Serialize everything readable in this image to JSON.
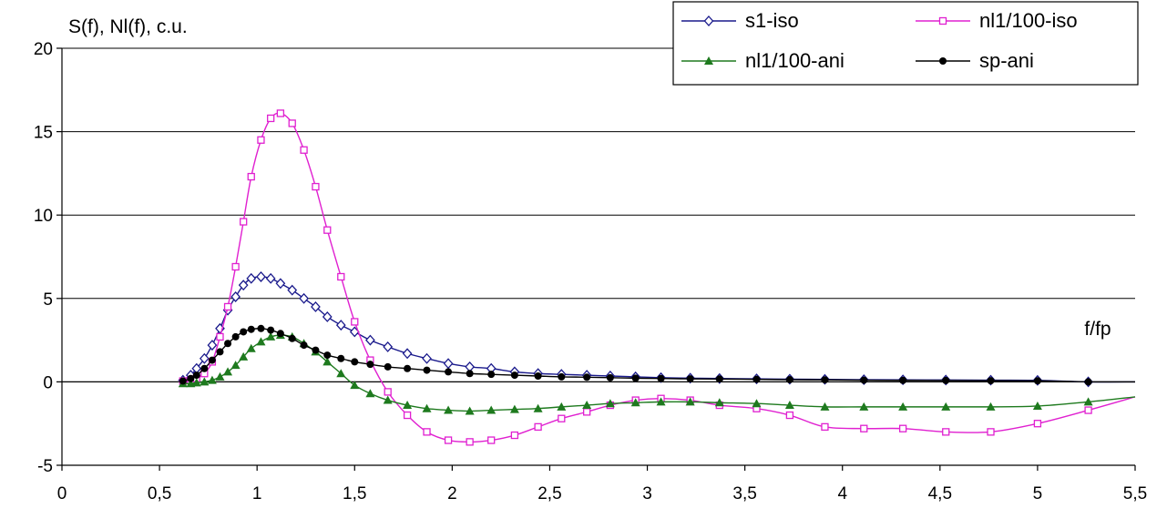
{
  "chart_data": {
    "type": "line",
    "ylabel": "S(f), Nl(f), c.u.",
    "xlabel": "f/fp",
    "xlim": [
      0,
      5.5
    ],
    "ylim": [
      -5,
      20
    ],
    "x_ticks": [
      "0",
      "0,5",
      "1",
      "1,5",
      "2",
      "2,5",
      "3",
      "3,5",
      "4",
      "4,5",
      "5",
      "5,5"
    ],
    "y_ticks": [
      "-5",
      "0",
      "5",
      "10",
      "15",
      "20"
    ],
    "grid": "horizontal",
    "legend_position": "top-right",
    "series": [
      {
        "name": "s1-iso",
        "color": "#1a1a8c",
        "marker": "open-diamond",
        "x": [
          0.62,
          0.66,
          0.69,
          0.73,
          0.77,
          0.81,
          0.85,
          0.89,
          0.93,
          0.97,
          1.02,
          1.07,
          1.12,
          1.18,
          1.24,
          1.3,
          1.36,
          1.43,
          1.5,
          1.58,
          1.67,
          1.77,
          1.87,
          1.98,
          2.09,
          2.2,
          2.32,
          2.44,
          2.56,
          2.69,
          2.81,
          2.94,
          3.07,
          3.22,
          3.37,
          3.56,
          3.73,
          3.91,
          4.11,
          4.31,
          4.53,
          4.76,
          5.0,
          5.26
        ],
        "y": [
          0.1,
          0.4,
          0.8,
          1.4,
          2.2,
          3.2,
          4.3,
          5.1,
          5.8,
          6.2,
          6.3,
          6.2,
          5.9,
          5.5,
          5.0,
          4.5,
          3.9,
          3.4,
          3.0,
          2.5,
          2.1,
          1.7,
          1.4,
          1.1,
          0.9,
          0.8,
          0.6,
          0.5,
          0.45,
          0.4,
          0.35,
          0.3,
          0.25,
          0.22,
          0.2,
          0.18,
          0.16,
          0.15,
          0.13,
          0.12,
          0.11,
          0.1,
          0.09,
          0.0
        ]
      },
      {
        "name": "nl1/100-iso",
        "color": "#e020d0",
        "marker": "open-square",
        "x": [
          0.62,
          0.66,
          0.69,
          0.73,
          0.77,
          0.81,
          0.85,
          0.89,
          0.93,
          0.97,
          1.02,
          1.07,
          1.12,
          1.18,
          1.24,
          1.3,
          1.36,
          1.43,
          1.5,
          1.58,
          1.67,
          1.77,
          1.87,
          1.98,
          2.09,
          2.2,
          2.32,
          2.44,
          2.56,
          2.69,
          2.81,
          2.94,
          3.07,
          3.22,
          3.37,
          3.56,
          3.73,
          3.91,
          4.11,
          4.31,
          4.53,
          4.76,
          5.0,
          5.26
        ],
        "y": [
          0.05,
          0.1,
          0.2,
          0.5,
          1.2,
          2.7,
          4.5,
          6.9,
          9.6,
          12.3,
          14.5,
          15.8,
          16.1,
          15.5,
          13.9,
          11.7,
          9.1,
          6.3,
          3.6,
          1.3,
          -0.6,
          -2.0,
          -3.0,
          -3.5,
          -3.6,
          -3.5,
          -3.2,
          -2.7,
          -2.2,
          -1.8,
          -1.4,
          -1.1,
          -1.0,
          -1.1,
          -1.4,
          -1.6,
          -2.0,
          -2.7,
          -2.8,
          -2.8,
          -3.0,
          -3.0,
          -2.5,
          -1.7
        ]
      },
      {
        "name": "nl1/100-ani",
        "color": "#1e7a1e",
        "marker": "filled-triangle",
        "x": [
          0.62,
          0.66,
          0.69,
          0.73,
          0.77,
          0.81,
          0.85,
          0.89,
          0.93,
          0.97,
          1.02,
          1.07,
          1.12,
          1.18,
          1.24,
          1.3,
          1.36,
          1.43,
          1.5,
          1.58,
          1.67,
          1.77,
          1.87,
          1.98,
          2.09,
          2.2,
          2.32,
          2.44,
          2.56,
          2.69,
          2.81,
          2.94,
          3.07,
          3.22,
          3.37,
          3.56,
          3.73,
          3.91,
          4.11,
          4.31,
          4.53,
          4.76,
          5.0,
          5.26
        ],
        "y": [
          -0.1,
          -0.1,
          -0.05,
          0.0,
          0.1,
          0.3,
          0.6,
          1.0,
          1.5,
          2.0,
          2.4,
          2.7,
          2.8,
          2.7,
          2.3,
          1.8,
          1.2,
          0.5,
          -0.2,
          -0.7,
          -1.1,
          -1.4,
          -1.6,
          -1.7,
          -1.75,
          -1.7,
          -1.65,
          -1.6,
          -1.5,
          -1.4,
          -1.3,
          -1.25,
          -1.2,
          -1.2,
          -1.25,
          -1.3,
          -1.4,
          -1.5,
          -1.5,
          -1.5,
          -1.5,
          -1.5,
          -1.45,
          -1.2
        ]
      },
      {
        "name": "sp-ani",
        "color": "#000000",
        "marker": "filled-circle",
        "x": [
          0.62,
          0.66,
          0.69,
          0.73,
          0.77,
          0.81,
          0.85,
          0.89,
          0.93,
          0.97,
          1.02,
          1.07,
          1.12,
          1.18,
          1.24,
          1.3,
          1.36,
          1.43,
          1.5,
          1.58,
          1.67,
          1.77,
          1.87,
          1.98,
          2.09,
          2.2,
          2.32,
          2.44,
          2.56,
          2.69,
          2.81,
          2.94,
          3.07,
          3.22,
          3.37,
          3.56,
          3.73,
          3.91,
          4.11,
          4.31,
          4.53,
          4.76,
          5.0,
          5.26
        ],
        "y": [
          0.05,
          0.2,
          0.4,
          0.8,
          1.3,
          1.8,
          2.3,
          2.7,
          3.0,
          3.15,
          3.2,
          3.1,
          2.9,
          2.6,
          2.2,
          1.9,
          1.6,
          1.4,
          1.2,
          1.05,
          0.9,
          0.8,
          0.7,
          0.6,
          0.5,
          0.45,
          0.4,
          0.35,
          0.3,
          0.28,
          0.25,
          0.22,
          0.2,
          0.18,
          0.17,
          0.15,
          0.13,
          0.12,
          0.1,
          0.09,
          0.08,
          0.07,
          0.06,
          0.0
        ]
      }
    ]
  }
}
